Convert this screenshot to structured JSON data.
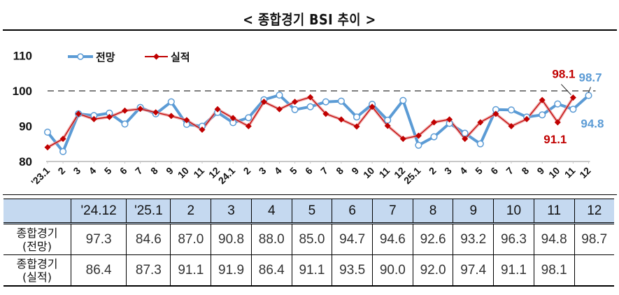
{
  "title": "< 종합경기 BSI 추이 >",
  "chart_data": {
    "type": "line",
    "title": "< 종합경기 BSI 추이 >",
    "xlabel": "",
    "ylabel": "",
    "ylim": [
      80,
      110
    ],
    "yticks": [
      "80",
      "90",
      "100",
      "110"
    ],
    "reference_line": {
      "value": 100,
      "style": "dashed",
      "color": "#555555"
    },
    "grid": false,
    "legend_position": "top-left",
    "x": [
      "'23.1",
      "2",
      "3",
      "4",
      "5",
      "6",
      "7",
      "8",
      "9",
      "10",
      "11",
      "12",
      "24.1",
      "2",
      "3",
      "4",
      "5",
      "6",
      "7",
      "8",
      "9",
      "10",
      "11",
      "12",
      "25.1",
      "2",
      "3",
      "4",
      "5",
      "6",
      "7",
      "8",
      "9",
      "10",
      "11",
      "12"
    ],
    "series": [
      {
        "name": "전망",
        "color": "#5b9bd5",
        "marker": "hollow-circle",
        "values": [
          88.3,
          82.8,
          93.5,
          93.0,
          93.7,
          90.6,
          95.3,
          93.5,
          96.9,
          90.5,
          90.0,
          93.9,
          91.0,
          92.4,
          97.5,
          98.8,
          94.7,
          95.5,
          96.9,
          97.1,
          92.6,
          96.2,
          91.7,
          97.3,
          84.6,
          87.0,
          90.8,
          88.0,
          85.0,
          94.7,
          94.6,
          92.6,
          93.2,
          96.3,
          94.8,
          98.7
        ]
      },
      {
        "name": "실적",
        "color": "#c00000",
        "marker": "filled-diamond",
        "values": [
          84.0,
          86.4,
          93.5,
          92.0,
          92.6,
          94.4,
          94.9,
          93.9,
          92.9,
          91.7,
          89.0,
          94.8,
          92.3,
          90.0,
          96.9,
          94.8,
          96.9,
          98.2,
          93.5,
          91.9,
          89.9,
          95.5,
          90.1,
          86.4,
          87.3,
          91.1,
          91.9,
          86.4,
          91.1,
          93.5,
          90.0,
          92.0,
          97.4,
          91.1,
          98.1,
          null
        ]
      }
    ],
    "annotations": [
      {
        "text": "98.1",
        "series": "실적",
        "x": "11",
        "color": "#c00000"
      },
      {
        "text": "91.1",
        "series": "실적",
        "x": "10",
        "color": "#c00000"
      },
      {
        "text": "98.7",
        "series": "전망",
        "x": "12",
        "color": "#5b9bd5"
      },
      {
        "text": "94.8",
        "series": "전망",
        "x": "11",
        "color": "#5b9bd5"
      }
    ]
  },
  "table": {
    "headers": [
      "",
      "'24.12",
      "'25.1",
      "2",
      "3",
      "4",
      "5",
      "6",
      "7",
      "8",
      "9",
      "10",
      "11",
      "12"
    ],
    "rows": [
      {
        "label_line1": "종합경기",
        "label_line2": "(전망)",
        "values": [
          "97.3",
          "84.6",
          "87.0",
          "90.8",
          "88.0",
          "85.0",
          "94.7",
          "94.6",
          "92.6",
          "93.2",
          "96.3",
          "94.8",
          "98.7"
        ]
      },
      {
        "label_line1": "종합경기",
        "label_line2": "(실적)",
        "values": [
          "86.4",
          "87.3",
          "91.1",
          "91.9",
          "86.4",
          "91.1",
          "93.5",
          "90.0",
          "92.0",
          "97.4",
          "91.1",
          "98.1",
          ""
        ]
      }
    ]
  }
}
